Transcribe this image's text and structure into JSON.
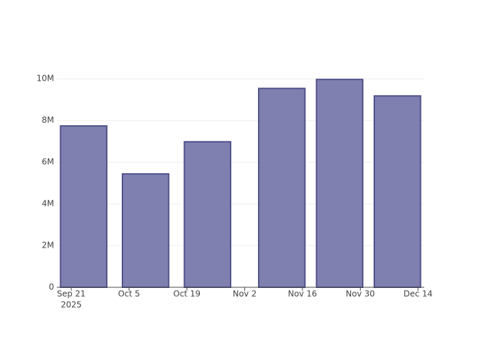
{
  "chart_data": {
    "type": "bar",
    "x": [
      "2025-09-24",
      "2025-10-09",
      "2025-10-24",
      "2025-11-11",
      "2025-11-25",
      "2025-12-09"
    ],
    "values": [
      7740000,
      5440000,
      6980000,
      9540000,
      9970000,
      9180000
    ],
    "color": "#7f7fb0",
    "edge_color": "#4f4f8a",
    "bar_width_days": 11.2,
    "xlim": [
      "2025-09-17T12:00:00Z",
      "2025-12-15T12:00:00Z"
    ],
    "xticks": [
      {
        "value": "2025-09-21",
        "label": "Sep 21"
      },
      {
        "value": "2025-10-05",
        "label": "Oct 5"
      },
      {
        "value": "2025-10-19",
        "label": "Oct 19"
      },
      {
        "value": "2025-11-02",
        "label": "Nov 2"
      },
      {
        "value": "2025-11-16",
        "label": "Nov 16"
      },
      {
        "value": "2025-11-30",
        "label": "Nov 30"
      },
      {
        "value": "2025-12-14",
        "label": "Dec 14"
      }
    ],
    "x_year_label": "2025",
    "ylim": [
      0,
      10500000
    ],
    "yticks": [
      0,
      {
        "value": 2000000,
        "label": "2M"
      },
      {
        "value": 4000000,
        "label": "4M"
      },
      {
        "value": 6000000,
        "label": "6M"
      },
      {
        "value": 8000000,
        "label": "8M"
      },
      {
        "value": 10000000,
        "label": "10M"
      }
    ],
    "grid": true
  }
}
